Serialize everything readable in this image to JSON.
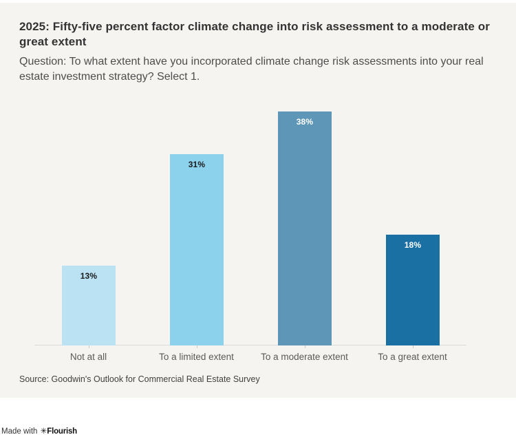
{
  "header": {
    "title": "2025: Fifty-five percent factor climate change into risk assessment to a moderate or great extent",
    "subtitle": "Question: To what extent have you incorporated climate change risk assessments into your real estate investment strategy? Select 1."
  },
  "chart_data": {
    "type": "bar",
    "title": "2025: Fifty-five percent factor climate change into risk assessment to a moderate or great extent",
    "subtitle": "Question: To what extent have you incorporated climate change risk assessments into your real estate investment strategy? Select 1.",
    "categories": [
      "Not at all",
      "To a limited extent",
      "To a moderate extent",
      "To a great extent"
    ],
    "values": [
      13,
      31,
      38,
      18
    ],
    "value_labels": [
      "13%",
      "31%",
      "38%",
      "18%"
    ],
    "bar_colors": [
      "#bae2f2",
      "#8dd2ec",
      "#5e96b8",
      "#1a6fa3"
    ],
    "value_label_colors": [
      "#1a1a1a",
      "#1a1a1a",
      "#ffffff",
      "#ffffff"
    ],
    "xlabel": "",
    "ylabel": "",
    "ylim": [
      0,
      39.3
    ],
    "grid": false,
    "legend": "none",
    "value_labels_shown": true,
    "y_axis_shown": false
  },
  "footer": {
    "source": "Source: Goodwin's Outlook for Commercial Real Estate Survey",
    "credit_prefix": "Made with ",
    "credit_icon": "✳",
    "credit_brand": "Flourish"
  },
  "colors": {
    "page_bg": "#ffffff",
    "card_bg": "#f5f4f1",
    "axis_line": "#d9d9d9",
    "tick": "#cccccc",
    "category_label": "#595959",
    "title_text": "#333333",
    "subtitle_text": "#4d4d4d"
  }
}
